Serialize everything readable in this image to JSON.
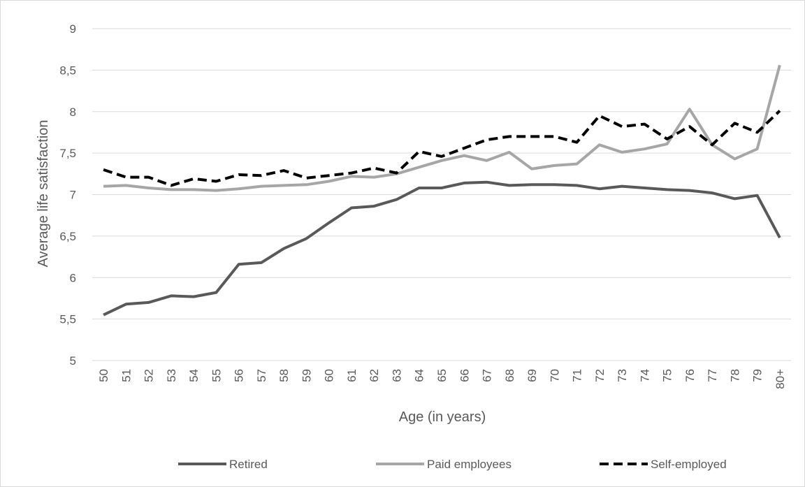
{
  "chart_data": {
    "type": "line",
    "title": "",
    "xlabel": "Age (in years)",
    "ylabel": "Average life satisfaction",
    "categories": [
      "50",
      "51",
      "52",
      "53",
      "54",
      "55",
      "56",
      "57",
      "58",
      "59",
      "60",
      "61",
      "62",
      "63",
      "64",
      "65",
      "66",
      "67",
      "68",
      "69",
      "70",
      "71",
      "72",
      "73",
      "74",
      "75",
      "76",
      "77",
      "78",
      "79",
      "80+"
    ],
    "y_ticks": [
      "5",
      "5,5",
      "6",
      "6,5",
      "7",
      "7,5",
      "8",
      "8,5",
      "9"
    ],
    "ylim": [
      5,
      9
    ],
    "grid": "horizontal",
    "legend_position": "bottom",
    "series": [
      {
        "name": "Retired",
        "color": "#595959",
        "dash": "solid",
        "values": [
          5.55,
          5.68,
          5.7,
          5.78,
          5.77,
          5.82,
          6.16,
          6.18,
          6.35,
          6.47,
          6.66,
          6.84,
          6.86,
          6.94,
          7.08,
          7.08,
          7.14,
          7.15,
          7.11,
          7.12,
          7.12,
          7.11,
          7.07,
          7.1,
          7.08,
          7.06,
          7.05,
          7.02,
          6.95,
          6.99,
          6.48
        ]
      },
      {
        "name": "Paid employees",
        "color": "#a6a6a6",
        "dash": "solid",
        "values": [
          7.1,
          7.11,
          7.08,
          7.06,
          7.06,
          7.05,
          7.07,
          7.1,
          7.11,
          7.12,
          7.16,
          7.22,
          7.21,
          7.25,
          7.33,
          7.41,
          7.47,
          7.41,
          7.51,
          7.31,
          7.35,
          7.37,
          7.6,
          7.51,
          7.55,
          7.61,
          8.03,
          7.6,
          7.43,
          7.55,
          8.56
        ]
      },
      {
        "name": "Self-employed",
        "color": "#000000",
        "dash": "dashed",
        "values": [
          7.3,
          7.21,
          7.21,
          7.11,
          7.19,
          7.16,
          7.24,
          7.23,
          7.29,
          7.2,
          7.23,
          7.26,
          7.32,
          7.26,
          7.52,
          7.46,
          7.56,
          7.66,
          7.7,
          7.7,
          7.7,
          7.63,
          7.95,
          7.82,
          7.85,
          7.67,
          7.82,
          7.6,
          7.86,
          7.75,
          8.01
        ]
      }
    ]
  }
}
